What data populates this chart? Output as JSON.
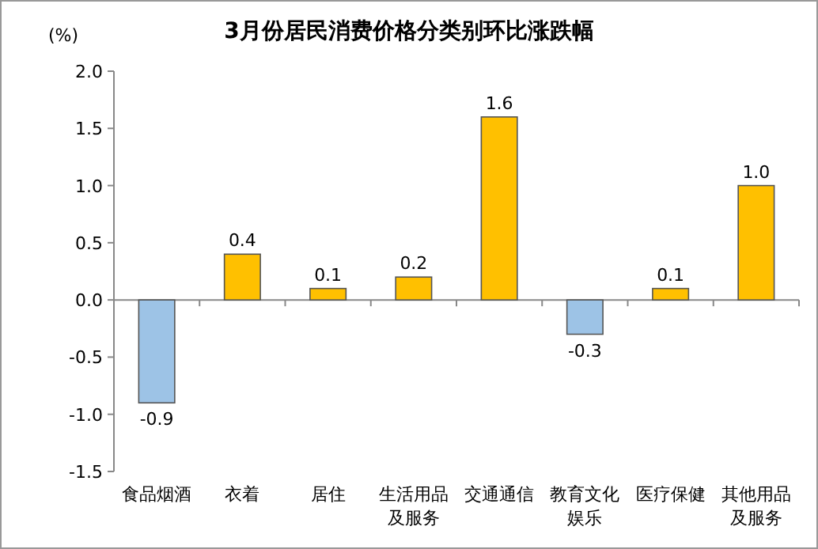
{
  "chart_data": {
    "type": "bar",
    "title": "3月份居民消费价格分类别环比涨跌幅",
    "ylabel": "(%)",
    "categories": [
      "食品烟酒",
      "衣着",
      "居住",
      "生活用品及服务",
      "交通通信",
      "教育文化娱乐",
      "医疗保健",
      "其他用品及服务"
    ],
    "values": [
      -0.9,
      0.4,
      0.1,
      0.2,
      1.6,
      -0.3,
      0.1,
      1.0
    ],
    "colors": [
      "#9dc3e6",
      "#ffc000",
      "#ffc000",
      "#ffc000",
      "#ffc000",
      "#9dc3e6",
      "#ffc000",
      "#ffc000"
    ],
    "ylim": [
      -1.5,
      2.0
    ],
    "yticks": [
      {
        "value": 2.0,
        "label": "2.0"
      },
      1.5,
      {
        "value": 1.0,
        "label": "1.0"
      },
      0.5,
      {
        "value": 0.0,
        "label": "0.0"
      },
      -0.5,
      {
        "value": -1.0,
        "label": "-1.0"
      },
      -1.5
    ],
    "value_labels": [
      "-0.9",
      "0.4",
      "0.1",
      "0.2",
      "1.6",
      "-0.3",
      "0.1",
      "1.0"
    ]
  }
}
